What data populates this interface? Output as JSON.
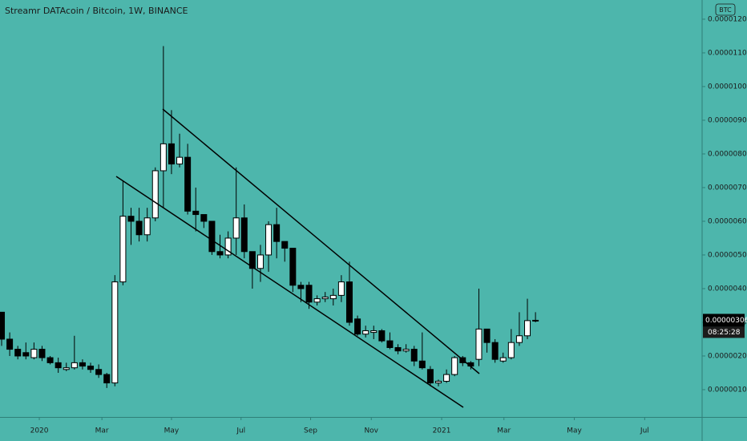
{
  "chart_data": {
    "type": "candlestick",
    "title": "Streamr DATAcoin / Bitcoin, 1W, BINANCE",
    "currency_badge": "BTC",
    "ohlc": [
      [
        3.3e-06,
        3.3e-06,
        2.3e-06,
        2.5e-06
      ],
      [
        2.5e-06,
        2.7e-06,
        2e-06,
        2.2e-06
      ],
      [
        2.2e-06,
        2.3e-06,
        1.9e-06,
        2e-06
      ],
      [
        2.1e-06,
        2.4e-06,
        1.9e-06,
        2e-06
      ],
      [
        1.95e-06,
        2.4e-06,
        1.9e-06,
        2.2e-06
      ],
      [
        2.2e-06,
        2.3e-06,
        1.85e-06,
        1.95e-06
      ],
      [
        1.95e-06,
        2e-06,
        1.75e-06,
        1.8e-06
      ],
      [
        1.8e-06,
        1.95e-06,
        1.5e-06,
        1.65e-06
      ],
      [
        1.6e-06,
        1.8e-06,
        1.55e-06,
        1.65e-06
      ],
      [
        1.65e-06,
        2.6e-06,
        1.6e-06,
        1.8e-06
      ],
      [
        1.8e-06,
        1.9e-06,
        1.6e-06,
        1.7e-06
      ],
      [
        1.7e-06,
        1.8e-06,
        1.5e-06,
        1.6e-06
      ],
      [
        1.6e-06,
        1.75e-06,
        1.35e-06,
        1.45e-06
      ],
      [
        1.45e-06,
        1.5e-06,
        1.05e-06,
        1.2e-06
      ],
      [
        1.2e-06,
        4.4e-06,
        1.1e-06,
        4.2e-06
      ],
      [
        4.2e-06,
        7.2e-06,
        4.1e-06,
        6.15e-06
      ],
      [
        6.15e-06,
        6.4e-06,
        5.3e-06,
        6e-06
      ],
      [
        6e-06,
        6.4e-06,
        5.4e-06,
        5.6e-06
      ],
      [
        5.6e-06,
        6.4e-06,
        5.4e-06,
        6.1e-06
      ],
      [
        6.1e-06,
        7.6e-06,
        6e-06,
        7.5e-06
      ],
      [
        7.5e-06,
        1.12e-05,
        6.4e-06,
        8.3e-06
      ],
      [
        8.3e-06,
        9.3e-06,
        7.4e-06,
        7.7e-06
      ],
      [
        7.7e-06,
        8.6e-06,
        7.6e-06,
        7.9e-06
      ],
      [
        7.9e-06,
        8.3e-06,
        6.2e-06,
        6.3e-06
      ],
      [
        6.3e-06,
        7e-06,
        5.7e-06,
        6.2e-06
      ],
      [
        6.2e-06,
        6.2e-06,
        5.8e-06,
        6e-06
      ],
      [
        6e-06,
        6e-06,
        5e-06,
        5.1e-06
      ],
      [
        5.1e-06,
        5.6e-06,
        4.9e-06,
        5e-06
      ],
      [
        5e-06,
        5.7e-06,
        4.9e-06,
        5.5e-06
      ],
      [
        5.5e-06,
        7.6e-06,
        5e-06,
        6.1e-06
      ],
      [
        6.1e-06,
        6.5e-06,
        4.9e-06,
        5.1e-06
      ],
      [
        5.1e-06,
        5.1e-06,
        4e-06,
        4.6e-06
      ],
      [
        4.6e-06,
        5.3e-06,
        4.2e-06,
        5e-06
      ],
      [
        5e-06,
        6e-06,
        4.5e-06,
        5.9e-06
      ],
      [
        5.9e-06,
        6.4e-06,
        4.9e-06,
        5.4e-06
      ],
      [
        5.4e-06,
        5.4e-06,
        4.8e-06,
        5.2e-06
      ],
      [
        5.2e-06,
        5.2e-06,
        3.9e-06,
        4.1e-06
      ],
      [
        4.1e-06,
        4.2e-06,
        3.6e-06,
        4e-06
      ],
      [
        4.1e-06,
        4.2e-06,
        3.4e-06,
        3.6e-06
      ],
      [
        3.6e-06,
        3.8e-06,
        3.5e-06,
        3.7e-06
      ],
      [
        3.7e-06,
        3.9e-06,
        3.6e-06,
        3.75e-06
      ],
      [
        3.7e-06,
        4e-06,
        3.5e-06,
        3.8e-06
      ],
      [
        3.8e-06,
        4.4e-06,
        3.6e-06,
        4.2e-06
      ],
      [
        4.2e-06,
        4.8e-06,
        2.9e-06,
        3e-06
      ],
      [
        3.1e-06,
        3.2e-06,
        2.6e-06,
        2.65e-06
      ],
      [
        2.65e-06,
        2.9e-06,
        2.55e-06,
        2.75e-06
      ],
      [
        2.7e-06,
        2.9e-06,
        2.5e-06,
        2.75e-06
      ],
      [
        2.75e-06,
        2.8e-06,
        2.4e-06,
        2.45e-06
      ],
      [
        2.45e-06,
        2.7e-06,
        2.2e-06,
        2.25e-06
      ],
      [
        2.25e-06,
        2.35e-06,
        2.05e-06,
        2.15e-06
      ],
      [
        2.15e-06,
        2.35e-06,
        2.1e-06,
        2.2e-06
      ],
      [
        2.2e-06,
        2.3e-06,
        1.7e-06,
        1.85e-06
      ],
      [
        1.85e-06,
        2.7e-06,
        1.6e-06,
        1.65e-06
      ],
      [
        1.6e-06,
        1.7e-06,
        1.1e-06,
        1.2e-06
      ],
      [
        1.2e-06,
        1.3e-06,
        1.1e-06,
        1.25e-06
      ],
      [
        1.25e-06,
        1.6e-06,
        1.2e-06,
        1.45e-06
      ],
      [
        1.45e-06,
        2e-06,
        1.4e-06,
        1.95e-06
      ],
      [
        1.95e-06,
        2e-06,
        1.7e-06,
        1.8e-06
      ],
      [
        1.8e-06,
        1.85e-06,
        1.6e-06,
        1.7e-06
      ],
      [
        1.9e-06,
        4e-06,
        1.7e-06,
        2.8e-06
      ],
      [
        2.8e-06,
        2.8e-06,
        2.1e-06,
        2.4e-06
      ],
      [
        2.4e-06,
        2.5e-06,
        1.8e-06,
        1.9e-06
      ],
      [
        1.85e-06,
        2.1e-06,
        1.8e-06,
        1.95e-06
      ],
      [
        1.95e-06,
        2.8e-06,
        1.9e-06,
        2.4e-06
      ],
      [
        2.4e-06,
        3.3e-06,
        2.3e-06,
        2.6e-06
      ],
      [
        2.6e-06,
        3.7e-06,
        2.5e-06,
        3.05e-06
      ],
      [
        3.05e-06,
        3.3e-06,
        3e-06,
        3.06e-06
      ]
    ],
    "up_color": "#ffffff",
    "down_color": "#000000",
    "xlim": [
      -0.2,
      86.5
    ],
    "xticks": [
      {
        "value": 4.66,
        "label": "2020"
      },
      {
        "value": 12.4,
        "label": "Mar"
      },
      {
        "value": 21.0,
        "label": "May"
      },
      {
        "value": 29.6,
        "label": "Jul"
      },
      {
        "value": 38.2,
        "label": "Sep"
      },
      {
        "value": 45.7,
        "label": "Nov"
      },
      {
        "value": 54.4,
        "label": "2021"
      },
      {
        "value": 62.1,
        "label": "Mar"
      },
      {
        "value": 70.8,
        "label": "May"
      },
      {
        "value": 79.5,
        "label": "Jul"
      }
    ],
    "ylim": [
      1.9e-07,
      1.257e-05
    ],
    "yticks": [
      {
        "value": 1e-06,
        "label": "0.00000100"
      },
      {
        "value": 2e-06,
        "label": "0.00000200"
      },
      {
        "value": 3e-06,
        "label": "0.00000300"
      },
      {
        "value": 4e-06,
        "label": "0.00000400"
      },
      {
        "value": 5e-06,
        "label": "0.00000500"
      },
      {
        "value": 6e-06,
        "label": "0.00000600"
      },
      {
        "value": 7e-06,
        "label": "0.00000700"
      },
      {
        "value": 8e-06,
        "label": "0.00000800"
      },
      {
        "value": 9e-06,
        "label": "0.00000900"
      },
      {
        "value": 1e-05,
        "label": "0.00001000"
      },
      {
        "value": 1.1e-05,
        "label": "0.00001100"
      },
      {
        "value": 1.2e-05,
        "label": "0.00001200"
      }
    ],
    "last_price": {
      "value": 3.06e-06,
      "label": "0.00000306"
    },
    "countdown": "08:25:28"
  }
}
